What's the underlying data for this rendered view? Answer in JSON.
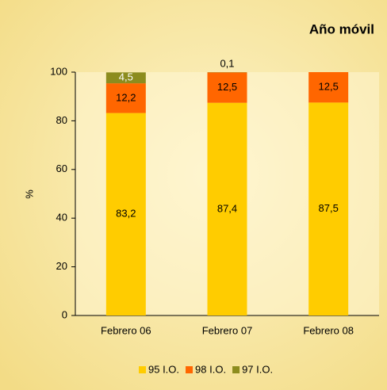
{
  "chart_data": {
    "type": "bar",
    "stacked": true,
    "title": "Año móvil",
    "y_label": "%",
    "categories": [
      "Febrero 06",
      "Febrero 07",
      "Febrero 08"
    ],
    "series": [
      {
        "name": "95 I.O.",
        "color": "#ffcc00",
        "values": [
          83.2,
          87.4,
          87.5
        ],
        "value_labels": [
          "83,2",
          "87,4",
          "87,5"
        ]
      },
      {
        "name": "98 I.O.",
        "color": "#ff6600",
        "values": [
          12.2,
          12.5,
          12.5
        ],
        "value_labels": [
          "12,2",
          "12,5",
          "12,5"
        ]
      },
      {
        "name": "97 I.O.",
        "color": "#8c8c1e",
        "values": [
          4.5,
          0.1,
          null
        ],
        "value_labels": [
          "4,5",
          "0,1",
          null
        ]
      }
    ],
    "ylim": [
      0,
      100
    ],
    "yticks": [
      0,
      20,
      40,
      60,
      80,
      100
    ],
    "legend": "bottom"
  }
}
